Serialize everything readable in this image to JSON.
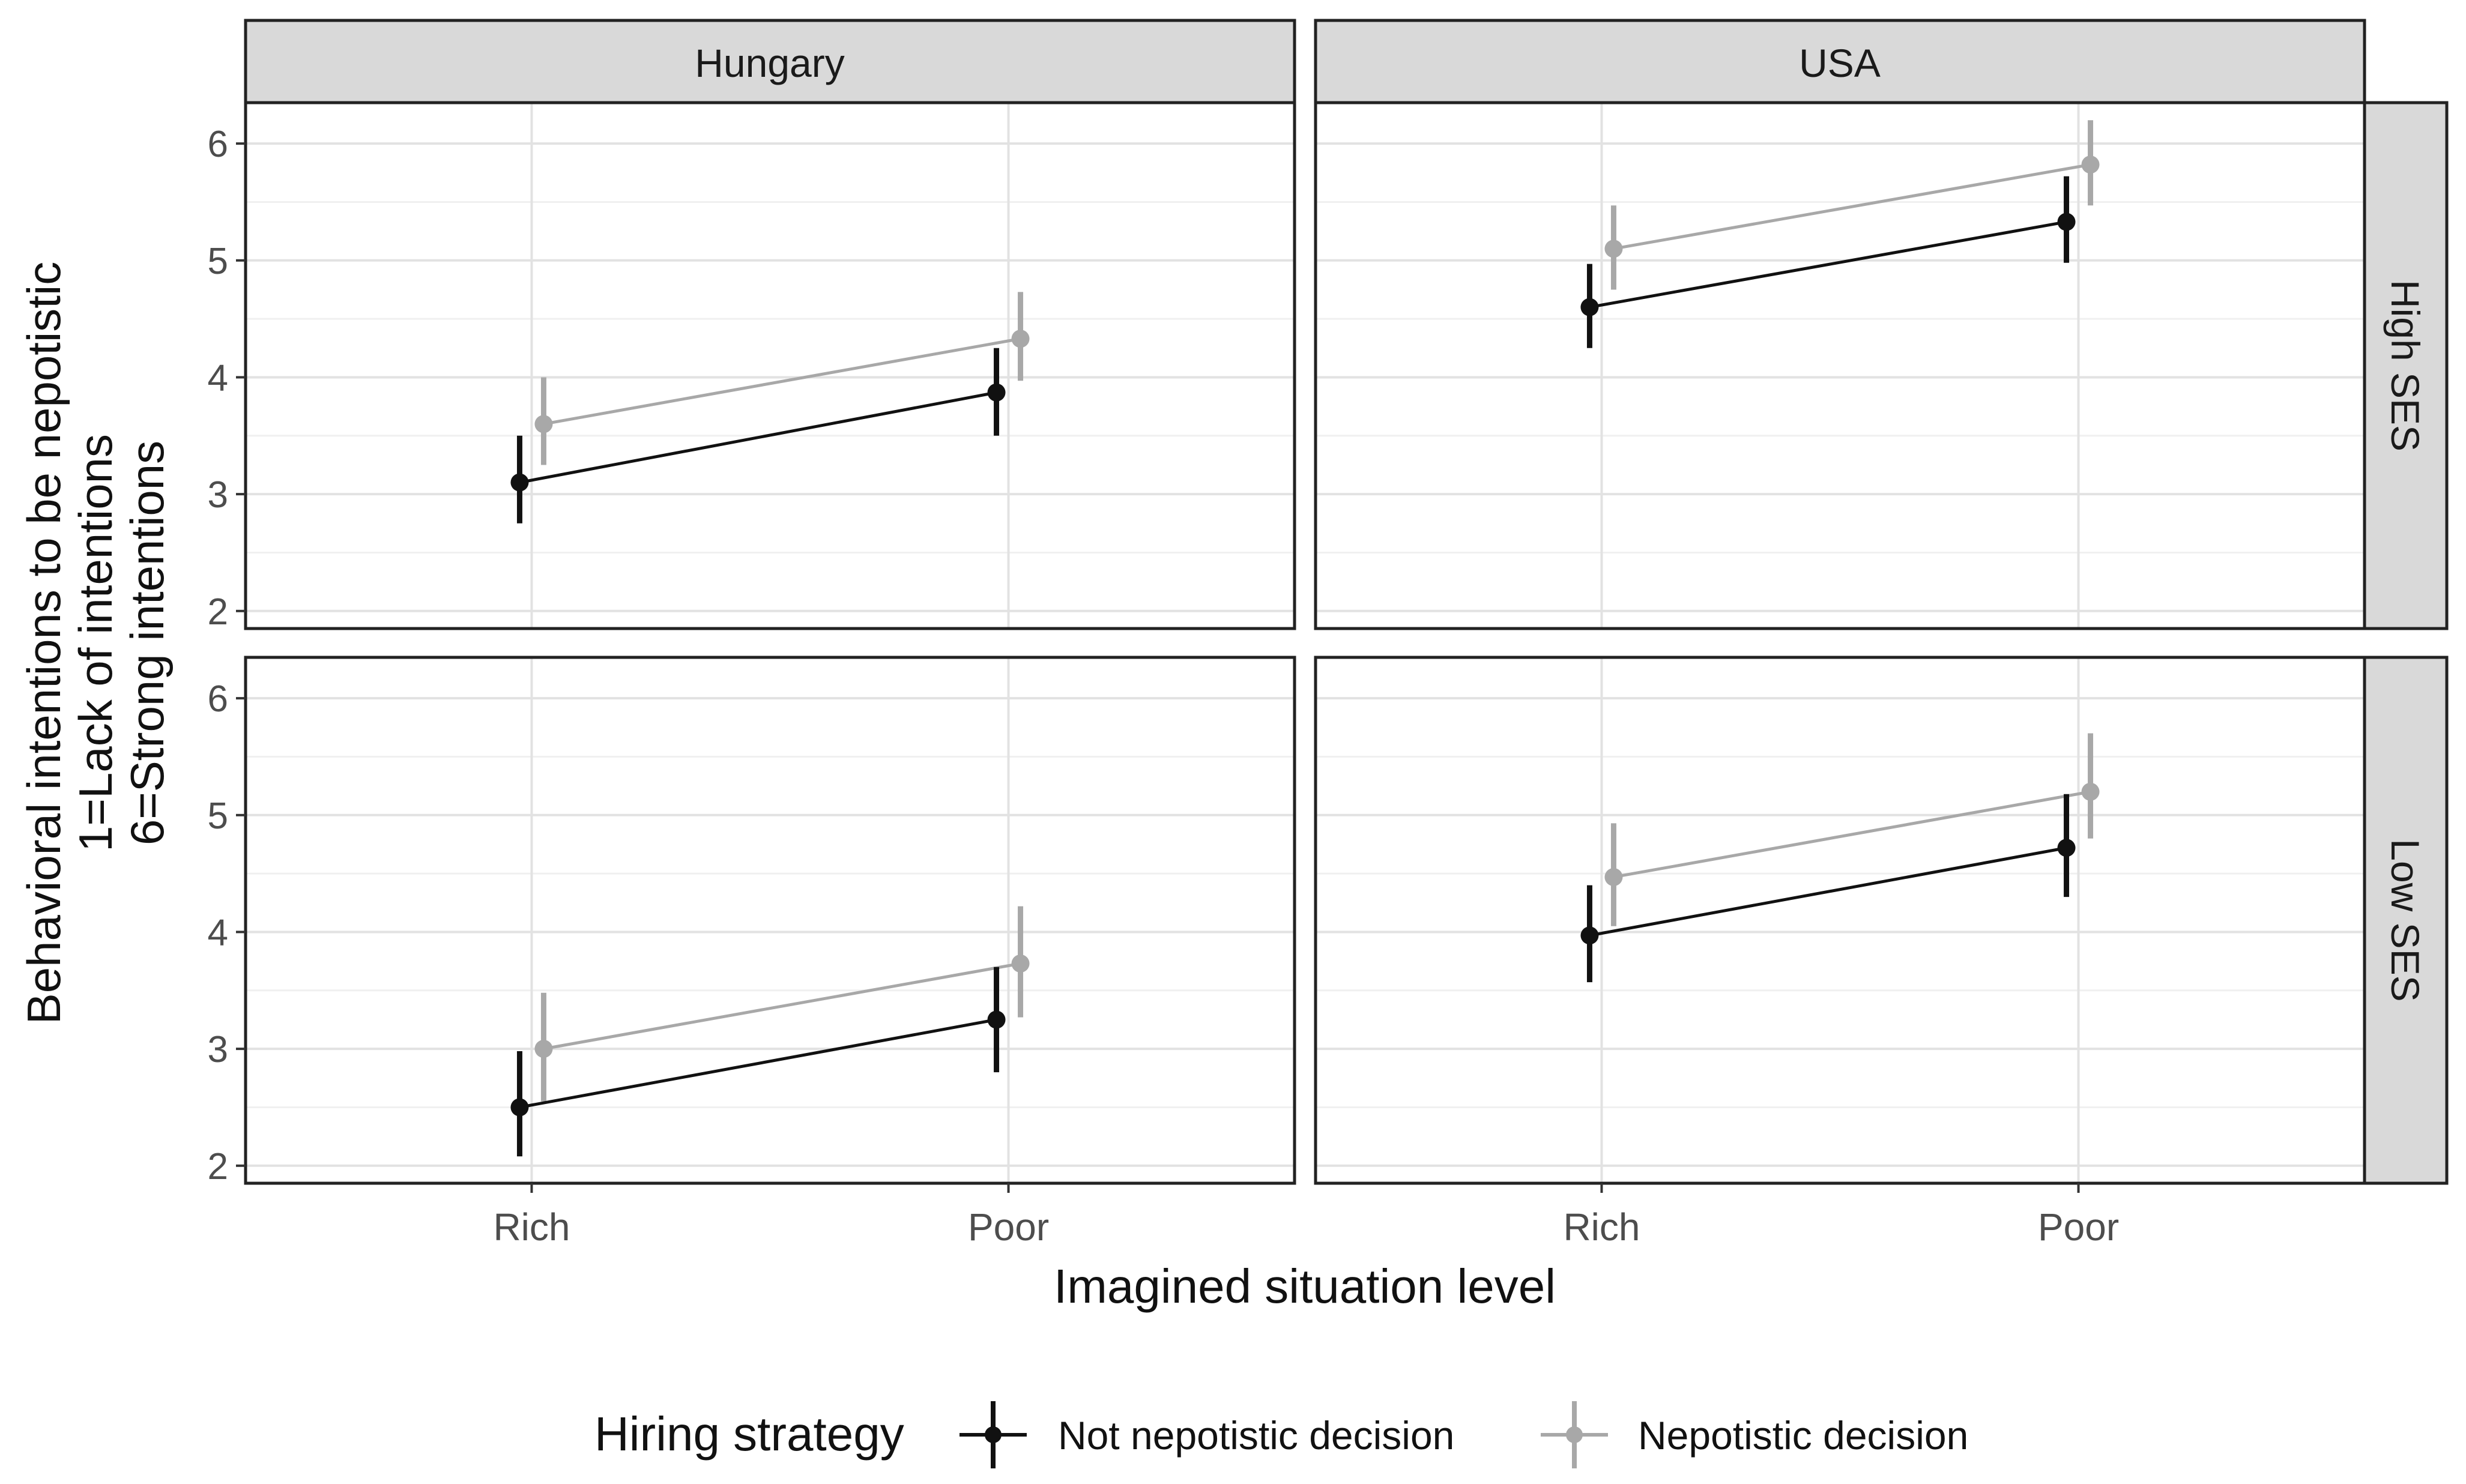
{
  "chart_data": {
    "type": "line",
    "xlabel": "Imagined situation level",
    "ylabel": [
      "Behavioral intentions to be nepotistic",
      "1=Lack of intentions",
      "6=Strong intentions"
    ],
    "categories": [
      "Rich",
      "Poor"
    ],
    "ylim": [
      1.85,
      6.35
    ],
    "yticks": [
      2,
      3,
      4,
      5,
      6
    ],
    "grid": true,
    "legend": {
      "title": "Hiring strategy",
      "position": "bottom",
      "entries": [
        {
          "name": "Not nepotistic decision",
          "color": "#111111"
        },
        {
          "name": "Nepotistic decision",
          "color": "#a8a8a8"
        }
      ]
    },
    "col_facets": [
      "Hungary",
      "USA"
    ],
    "row_facets": [
      "High SES",
      "Low SES"
    ],
    "panels": [
      {
        "country": "Hungary",
        "ses": "High SES",
        "series": [
          {
            "name": "Not nepotistic decision",
            "values": [
              3.1,
              3.87
            ],
            "lower": [
              2.75,
              3.5
            ],
            "upper": [
              3.5,
              4.25
            ]
          },
          {
            "name": "Nepotistic decision",
            "values": [
              3.6,
              4.33
            ],
            "lower": [
              3.25,
              3.97
            ],
            "upper": [
              4.0,
              4.73
            ]
          }
        ]
      },
      {
        "country": "USA",
        "ses": "High SES",
        "series": [
          {
            "name": "Not nepotistic decision",
            "values": [
              4.6,
              5.33
            ],
            "lower": [
              4.25,
              4.98
            ],
            "upper": [
              4.97,
              5.72
            ]
          },
          {
            "name": "Nepotistic decision",
            "values": [
              5.1,
              5.82
            ],
            "lower": [
              4.75,
              5.47
            ],
            "upper": [
              5.47,
              6.2
            ]
          }
        ]
      },
      {
        "country": "Hungary",
        "ses": "Low SES",
        "series": [
          {
            "name": "Not nepotistic decision",
            "values": [
              2.5,
              3.25
            ],
            "lower": [
              2.08,
              2.8
            ],
            "upper": [
              2.98,
              3.7
            ]
          },
          {
            "name": "Nepotistic decision",
            "values": [
              3.0,
              3.73
            ],
            "lower": [
              2.55,
              3.27
            ],
            "upper": [
              3.48,
              4.22
            ]
          }
        ]
      },
      {
        "country": "USA",
        "ses": "Low SES",
        "series": [
          {
            "name": "Not nepotistic decision",
            "values": [
              3.97,
              4.72
            ],
            "lower": [
              3.57,
              4.3
            ],
            "upper": [
              4.4,
              5.18
            ]
          },
          {
            "name": "Nepotistic decision",
            "values": [
              4.47,
              5.2
            ],
            "lower": [
              4.05,
              4.8
            ],
            "upper": [
              4.93,
              5.7
            ]
          }
        ]
      }
    ]
  }
}
